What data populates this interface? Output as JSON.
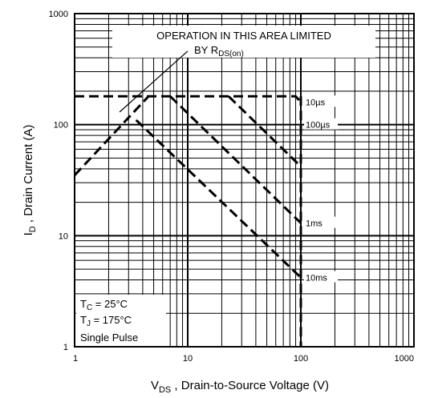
{
  "chart_data": {
    "type": "line",
    "xscale": "log",
    "yscale": "log",
    "xlim": [
      1,
      1000
    ],
    "ylim": [
      1,
      1000
    ],
    "grid": true,
    "x_ticks": [
      "1",
      "10",
      "100",
      "1000"
    ],
    "y_ticks": [
      "1",
      "10",
      "100",
      "1000"
    ],
    "xlabel": {
      "main": "V",
      "sub": "DS",
      "rest": " , Drain-to-Source Voltage (V)"
    },
    "ylabel": {
      "main": "I",
      "sub": "D",
      "rest": " , Drain Current (A)"
    },
    "annotation": {
      "line1": "OPERATION IN THIS AREA LIMITED",
      "line2_prefix": "BY R",
      "line2_sub": "DS(on)"
    },
    "conditions": [
      {
        "main": "T",
        "sub": "C",
        "rest": "  = 25°C"
      },
      {
        "main": "T",
        "sub": "J",
        "rest": "  = 175°C"
      },
      {
        "text": "Single Pulse"
      }
    ],
    "series": [
      {
        "name": "10µs",
        "points": [
          [
            1,
            180
          ],
          [
            90,
            180
          ],
          [
            100,
            160
          ]
        ]
      },
      {
        "name": "100µs",
        "points": [
          [
            23,
            180
          ],
          [
            100,
            42
          ]
        ]
      },
      {
        "name": "1ms",
        "points": [
          [
            7,
            180
          ],
          [
            100,
            13
          ]
        ]
      },
      {
        "name": "10ms",
        "points": [
          [
            3.5,
            110
          ],
          [
            100,
            4.2
          ]
        ]
      },
      {
        "name": "",
        "points": [
          [
            1,
            35
          ],
          [
            4.5,
            180
          ]
        ]
      }
    ],
    "limit_line": {
      "x": 100,
      "y_range": [
        1,
        180
      ]
    },
    "rds_pointer": [
      [
        2.5,
        130
      ],
      [
        10,
        460
      ]
    ]
  }
}
